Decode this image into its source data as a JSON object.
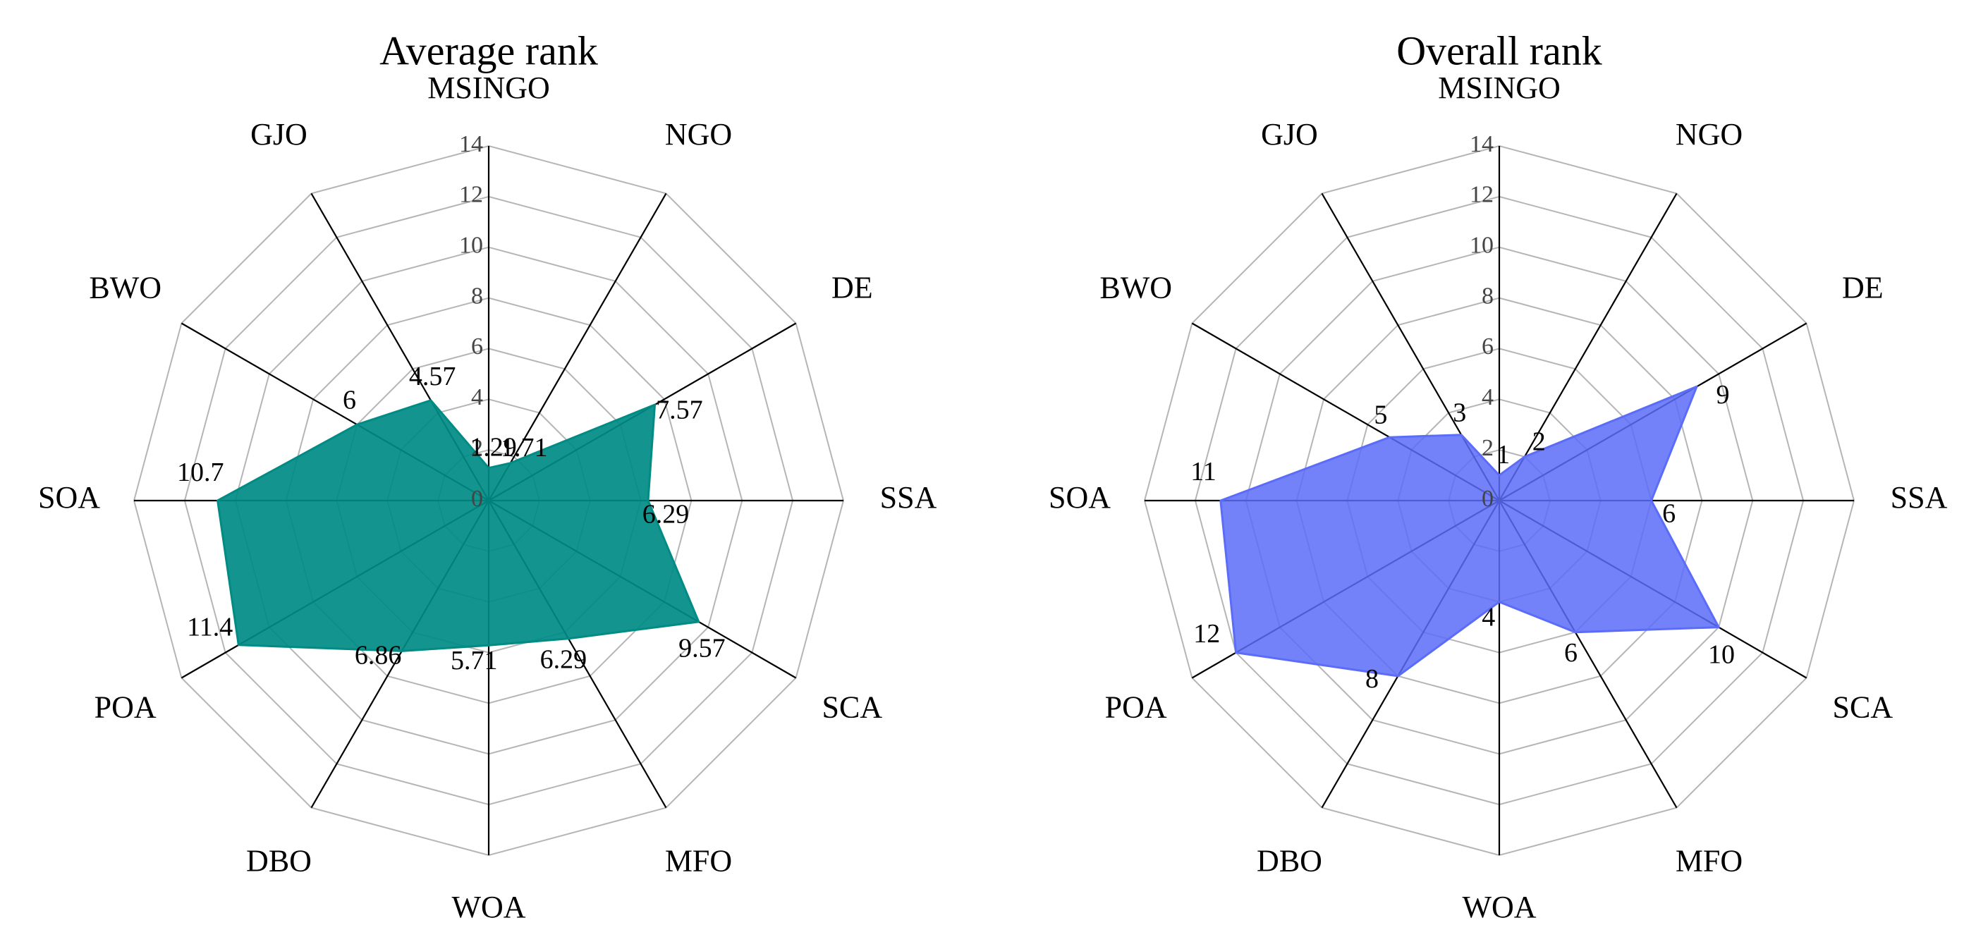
{
  "chart_data": [
    {
      "type": "radar",
      "title": "Average rank",
      "categories": [
        "MSINGO",
        "NGO",
        "DE",
        "SSA",
        "SCA",
        "MFO",
        "WOA",
        "DBO",
        "POA",
        "SOA",
        "BWO",
        "GJO"
      ],
      "values": [
        1.29,
        1.71,
        7.57,
        6.29,
        9.57,
        6.29,
        5.71,
        6.86,
        11.4,
        10.7,
        6,
        4.57
      ],
      "value_labels": [
        "1.29",
        "1.71",
        "7.57",
        "6.29",
        "9.57",
        "6.29",
        "5.71",
        "6.86",
        "11.4",
        "10.7",
        "6",
        "4.57"
      ],
      "r_ticks": [
        0,
        2,
        4,
        6,
        8,
        10,
        12,
        14
      ],
      "r_tick_labels": [
        "0",
        "2",
        "4",
        "6",
        "8",
        "10",
        "12",
        "14"
      ],
      "rlim": [
        0,
        14
      ],
      "grid": true,
      "color": "#008b84",
      "fill_opacity": 0.92
    },
    {
      "type": "radar",
      "title": "Overall rank",
      "categories": [
        "MSINGO",
        "NGO",
        "DE",
        "SSA",
        "SCA",
        "MFO",
        "WOA",
        "DBO",
        "POA",
        "SOA",
        "BWO",
        "GJO"
      ],
      "values": [
        1,
        2,
        9,
        6,
        10,
        6,
        4,
        8,
        12,
        11,
        5,
        3
      ],
      "value_labels": [
        "1",
        "2",
        "9",
        "6",
        "10",
        "6",
        "4",
        "8",
        "12",
        "11",
        "5",
        "3"
      ],
      "r_ticks": [
        0,
        2,
        4,
        6,
        8,
        10,
        12,
        14
      ],
      "r_tick_labels": [
        "0",
        "2",
        "4",
        "6",
        "8",
        "10",
        "12",
        "14"
      ],
      "rlim": [
        0,
        14
      ],
      "grid": true,
      "color": "#5b6cf8",
      "fill_opacity": 0.85
    }
  ]
}
